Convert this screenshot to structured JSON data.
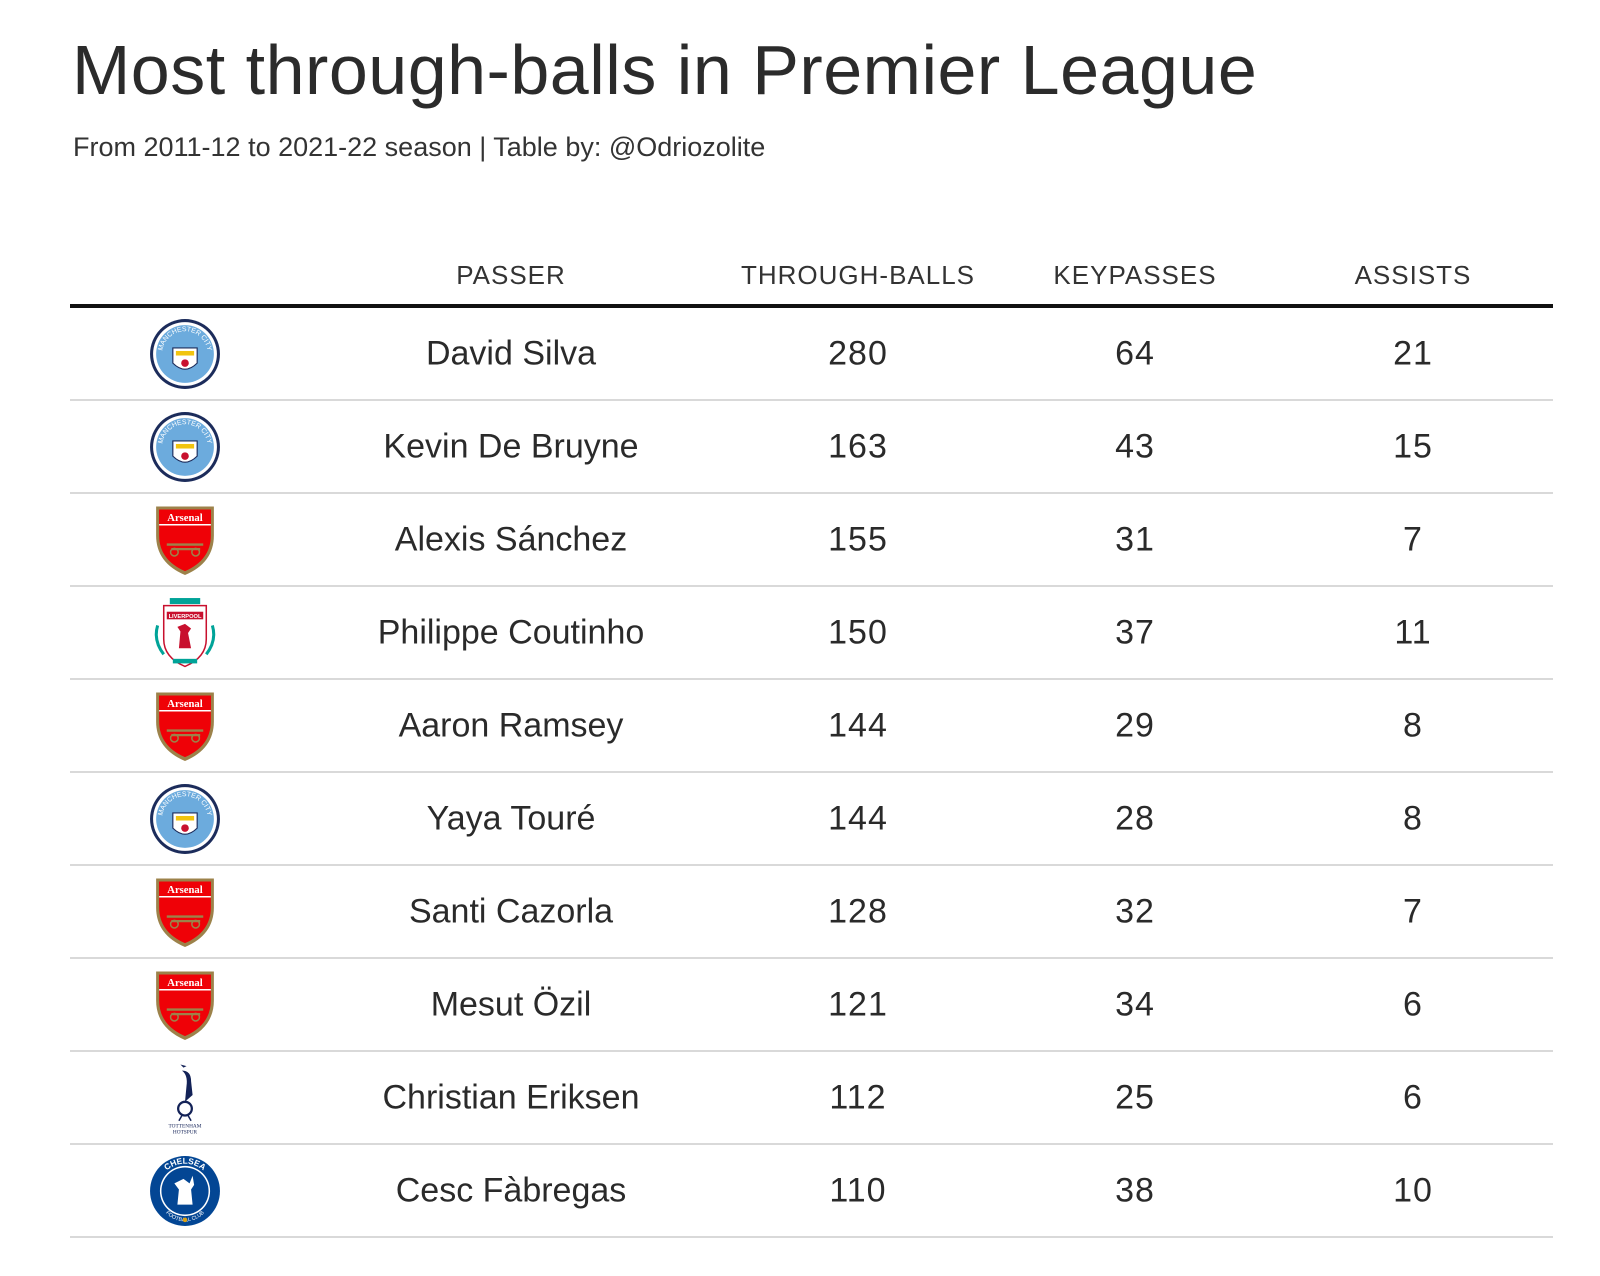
{
  "title": "Most through-balls in Premier League",
  "subtitle": "From 2011-12 to 2021-22 season | Table by: @Odriozolite",
  "chart_data": {
    "type": "table",
    "columns": [
      "PASSER",
      "THROUGH-BALLS",
      "KEYPASSES",
      "ASSISTS"
    ],
    "rows": [
      {
        "club_icon": "manchester-city-crest",
        "club_text": "MANCHESTER CITY",
        "passer": "David Silva",
        "through_balls": "280",
        "keypasses": "64",
        "assists": "21"
      },
      {
        "club_icon": "manchester-city-crest",
        "club_text": "MANCHESTER CITY",
        "passer": "Kevin De Bruyne",
        "through_balls": "163",
        "keypasses": "43",
        "assists": "15"
      },
      {
        "club_icon": "arsenal-crest",
        "club_text": "Arsenal",
        "passer": "Alexis Sánchez",
        "through_balls": "155",
        "keypasses": "31",
        "assists": "7"
      },
      {
        "club_icon": "liverpool-crest",
        "club_text": "LIVERPOOL",
        "passer": "Philippe Coutinho",
        "through_balls": "150",
        "keypasses": "37",
        "assists": "11"
      },
      {
        "club_icon": "arsenal-crest",
        "club_text": "Arsenal",
        "passer": "Aaron Ramsey",
        "through_balls": "144",
        "keypasses": "29",
        "assists": "8"
      },
      {
        "club_icon": "manchester-city-crest",
        "club_text": "MANCHESTER CITY",
        "passer": "Yaya Touré",
        "through_balls": "144",
        "keypasses": "28",
        "assists": "8"
      },
      {
        "club_icon": "arsenal-crest",
        "club_text": "Arsenal",
        "passer": "Santi Cazorla",
        "through_balls": "128",
        "keypasses": "32",
        "assists": "7"
      },
      {
        "club_icon": "arsenal-crest",
        "club_text": "Arsenal",
        "passer": "Mesut Özil",
        "through_balls": "121",
        "keypasses": "34",
        "assists": "6"
      },
      {
        "club_icon": "tottenham-crest",
        "club_text": "TOTTENHAM HOTSPUR",
        "passer": "Christian Eriksen",
        "through_balls": "112",
        "keypasses": "25",
        "assists": "6"
      },
      {
        "club_icon": "chelsea-crest",
        "club_text": "CHELSEA FOOTBALL CLUB",
        "passer": "Cesc Fàbregas",
        "through_balls": "110",
        "keypasses": "38",
        "assists": "10"
      }
    ]
  },
  "colors": {
    "text": "#2a2a2a",
    "rule": "#111111",
    "row_divider": "#d9d9d9",
    "city_blue": "#6cabdd",
    "city_navy": "#1c2c5b",
    "arsenal_red": "#ef0107",
    "arsenal_gold": "#9c824a",
    "liverpool_red": "#c8102e",
    "liverpool_green": "#00a398",
    "spurs_navy": "#132257",
    "chelsea_blue": "#034694",
    "chelsea_gold": "#dba111"
  }
}
